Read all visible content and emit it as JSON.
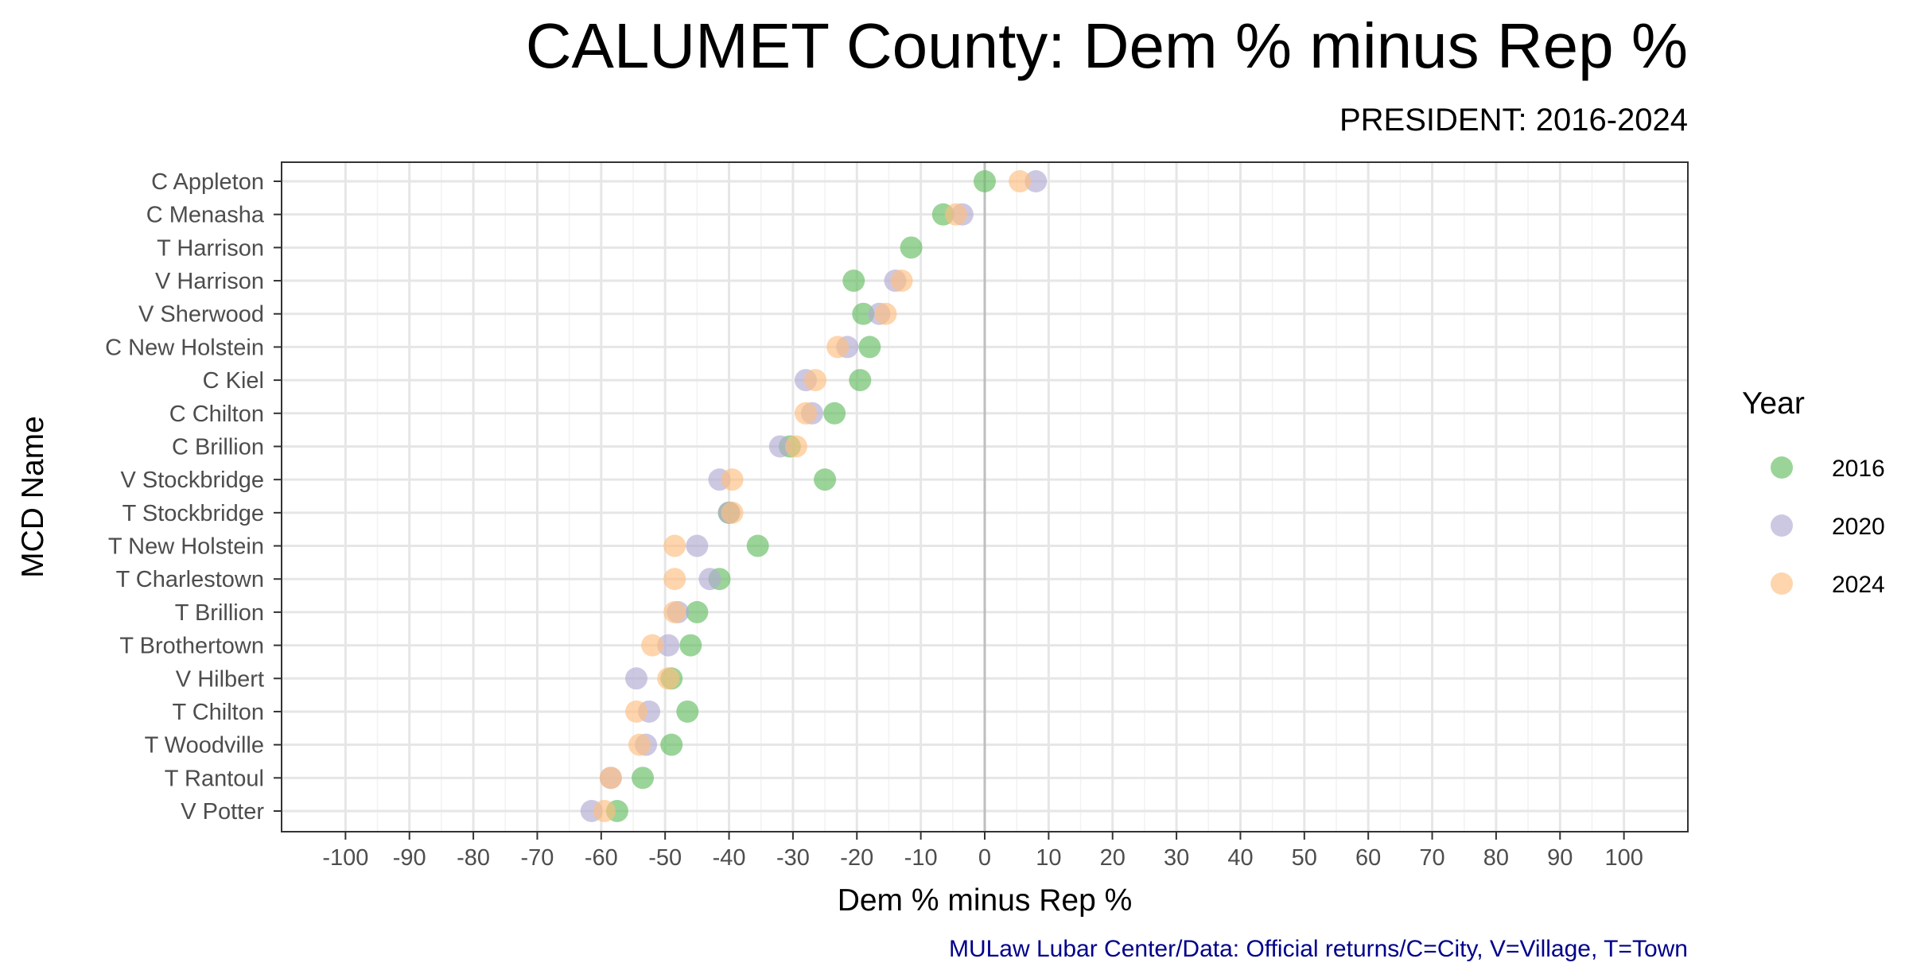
{
  "chart_data": {
    "type": "scatter",
    "title": "CALUMET County: Dem % minus Rep %",
    "subtitle": "PRESIDENT: 2016-2024",
    "xlabel": "Dem % minus Rep %",
    "ylabel": "MCD Name",
    "xlim": [
      -110,
      110
    ],
    "xticks": [
      -100,
      -90,
      -80,
      -70,
      -60,
      -50,
      -40,
      -30,
      -20,
      -10,
      0,
      10,
      20,
      30,
      40,
      50,
      60,
      70,
      80,
      90,
      100
    ],
    "grid": true,
    "reference_line_x": 0,
    "legend_title": "Year",
    "legend_position": "right",
    "caption": "MULaw Lubar Center/Data: Official returns/C=City, V=Village, T=Town",
    "categories": [
      "C Appleton",
      "C Menasha",
      "T Harrison",
      "V Harrison",
      "V Sherwood",
      "C New Holstein",
      "C Kiel",
      "C Chilton",
      "C Brillion",
      "V Stockbridge",
      "T Stockbridge",
      "T New Holstein",
      "T Charlestown",
      "T Brillion",
      "T Brothertown",
      "V Hilbert",
      "T Chilton",
      "T Woodville",
      "T Rantoul",
      "V Potter"
    ],
    "series": [
      {
        "name": "2016",
        "color": "#66bd63",
        "values": [
          0,
          -6.5,
          -11.5,
          -20.5,
          -19,
          -18,
          -19.5,
          -23.5,
          -30.5,
          -25,
          -40,
          -35.5,
          -41.5,
          -45,
          -46,
          -49,
          -46.5,
          -49,
          -53.5,
          -57.5
        ]
      },
      {
        "name": "2020",
        "color": "#b2abd2",
        "values": [
          8,
          -3.5,
          null,
          -14,
          -16.5,
          -21.5,
          -28,
          -27,
          -32,
          -41.5,
          -40,
          -45,
          -43,
          -48,
          -49.5,
          -54.5,
          -52.5,
          -53,
          -58.5,
          -61.5
        ]
      },
      {
        "name": "2024",
        "color": "#fdbf7f",
        "values": [
          5.5,
          -4.5,
          null,
          -13,
          -15.5,
          -23,
          -26.5,
          -28,
          -29.5,
          -39.5,
          -39.5,
          -48.5,
          -48.5,
          -48.5,
          -52,
          -49.5,
          -54.5,
          -54,
          -58.5,
          -59.5
        ]
      }
    ]
  }
}
